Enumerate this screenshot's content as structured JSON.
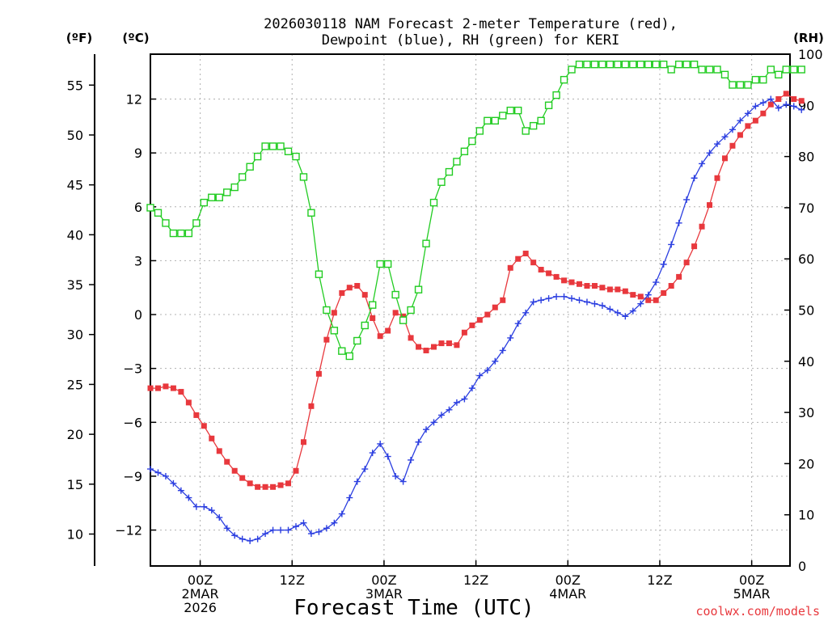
{
  "chart_data": {
    "type": "line",
    "title": "2026030118 NAM Forecast 2-meter Temperature (red),",
    "subtitle": "Dewpoint (blue), RH (green) for KERI",
    "xlabel": "Forecast Time (UTC)",
    "credit": "coolwx.com/models",
    "unit_left_outer": "(ºF)",
    "unit_left_inner": "(ºC)",
    "unit_right": "(RH)",
    "hours_start_offset": -6.5,
    "x_range_hours": [
      -6.5,
      77
    ],
    "ylim_c": [
      -14,
      14.5
    ],
    "ylim_rh": [
      0,
      100
    ],
    "f_ticks": [
      10,
      15,
      20,
      25,
      30,
      35,
      40,
      45,
      50,
      55
    ],
    "c_ticks": [
      -12,
      -9,
      -6,
      -3,
      0,
      3,
      6,
      9,
      12
    ],
    "rh_ticks": [
      0,
      10,
      20,
      30,
      40,
      50,
      60,
      70,
      80,
      90,
      100
    ],
    "x_ticks": [
      {
        "hour": 0,
        "lines": [
          "00Z",
          "2MAR",
          "2026"
        ]
      },
      {
        "hour": 12,
        "lines": [
          "12Z"
        ]
      },
      {
        "hour": 24,
        "lines": [
          "00Z",
          "3MAR"
        ]
      },
      {
        "hour": 36,
        "lines": [
          "12Z"
        ]
      },
      {
        "hour": 48,
        "lines": [
          "00Z",
          "4MAR"
        ]
      },
      {
        "hour": 60,
        "lines": [
          "12Z"
        ]
      },
      {
        "hour": 72,
        "lines": [
          "00Z",
          "5MAR"
        ]
      }
    ],
    "grid": true,
    "series": [
      {
        "name": "Temperature",
        "unit": "C",
        "color": "#e8383d",
        "marker": "filled-square",
        "values": [
          -4.1,
          -4.1,
          -4.0,
          -4.1,
          -4.3,
          -4.9,
          -5.6,
          -6.2,
          -6.9,
          -7.6,
          -8.2,
          -8.7,
          -9.1,
          -9.4,
          -9.6,
          -9.6,
          -9.6,
          -9.5,
          -9.4,
          -8.7,
          -7.1,
          -5.1,
          -3.3,
          -1.4,
          0.1,
          1.2,
          1.5,
          1.6,
          1.1,
          -0.2,
          -1.2,
          -0.9,
          0.1,
          -0.1,
          -1.3,
          -1.8,
          -2.0,
          -1.8,
          -1.6,
          -1.6,
          -1.7,
          -1.0,
          -0.6,
          -0.3,
          0.0,
          0.4,
          0.8,
          2.6,
          3.1,
          3.4,
          2.9,
          2.5,
          2.3,
          2.1,
          1.9,
          1.8,
          1.7,
          1.6,
          1.6,
          1.5,
          1.4,
          1.4,
          1.3,
          1.1,
          1.0,
          0.8,
          0.8,
          1.2,
          1.6,
          2.1,
          2.9,
          3.8,
          4.9,
          6.1,
          7.6,
          8.7,
          9.4,
          10.0,
          10.5,
          10.8,
          11.2,
          11.7,
          12.0,
          12.3,
          12.0,
          11.9
        ]
      },
      {
        "name": "Dewpoint",
        "unit": "C",
        "color": "#2b3ee0",
        "marker": "plus",
        "values": [
          -8.6,
          -8.8,
          -9.0,
          -9.4,
          -9.8,
          -10.2,
          -10.7,
          -10.7,
          -10.9,
          -11.3,
          -11.9,
          -12.3,
          -12.5,
          -12.6,
          -12.5,
          -12.2,
          -12.0,
          -12.0,
          -12.0,
          -11.8,
          -11.6,
          -12.2,
          -12.1,
          -11.9,
          -11.6,
          -11.1,
          -10.2,
          -9.3,
          -8.6,
          -7.7,
          -7.2,
          -7.9,
          -9.0,
          -9.3,
          -8.1,
          -7.1,
          -6.4,
          -6.0,
          -5.6,
          -5.3,
          -4.9,
          -4.7,
          -4.1,
          -3.4,
          -3.1,
          -2.6,
          -2.0,
          -1.3,
          -0.5,
          0.1,
          0.7,
          0.8,
          0.9,
          1.0,
          1.0,
          0.9,
          0.8,
          0.7,
          0.6,
          0.5,
          0.3,
          0.1,
          -0.1,
          0.2,
          0.6,
          1.1,
          1.8,
          2.8,
          3.9,
          5.1,
          6.4,
          7.6,
          8.4,
          9.0,
          9.5,
          9.9,
          10.3,
          10.8,
          11.2,
          11.6,
          11.8,
          12.0,
          11.5,
          11.7,
          11.6,
          11.4
        ]
      },
      {
        "name": "RH",
        "unit": "%",
        "color": "#22cc22",
        "marker": "open-square",
        "values": [
          70,
          69,
          67,
          65,
          65,
          65,
          67,
          71,
          72,
          72,
          73,
          74,
          76,
          78,
          80,
          82,
          82,
          82,
          81,
          80,
          76,
          69,
          57,
          50,
          46,
          42,
          41,
          44,
          47,
          51,
          59,
          59,
          53,
          48,
          50,
          54,
          63,
          71,
          75,
          77,
          79,
          81,
          83,
          85,
          87,
          87,
          88,
          89,
          89,
          85,
          86,
          87,
          90,
          92,
          95,
          97,
          98,
          98,
          98,
          98,
          98,
          98,
          98,
          98,
          98,
          98,
          98,
          98,
          97,
          98,
          98,
          98,
          97,
          97,
          97,
          96,
          94,
          94,
          94,
          95,
          95,
          97,
          96,
          97,
          97,
          97
        ]
      }
    ]
  }
}
